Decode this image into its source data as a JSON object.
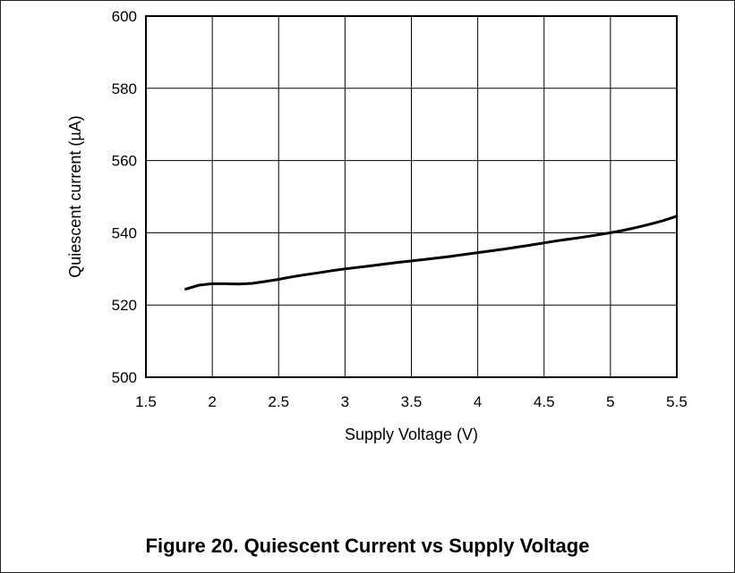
{
  "figure": {
    "caption": "Figure 20. Quiescent Current vs Supply Voltage"
  },
  "chart_data": {
    "type": "line",
    "title": "",
    "xlabel": "Supply Voltage (V)",
    "ylabel": "Quiescent current (µA)",
    "xlim": [
      1.5,
      5.5
    ],
    "ylim": [
      500,
      600
    ],
    "xticks": [
      "1.5",
      "2",
      "2.5",
      "3",
      "3.5",
      "4",
      "4.5",
      "5",
      "5.5"
    ],
    "yticks": [
      "500",
      "520",
      "540",
      "560",
      "580",
      "600"
    ],
    "grid": true,
    "series": [
      {
        "color": "#000000",
        "x": [
          1.8,
          1.9,
          2.0,
          2.1,
          2.2,
          2.3,
          2.4,
          2.5,
          2.6,
          2.7,
          2.8,
          2.9,
          3.0,
          3.2,
          3.4,
          3.6,
          3.8,
          4.0,
          4.2,
          4.4,
          4.6,
          4.8,
          5.0,
          5.1,
          5.2,
          5.3,
          5.4,
          5.5
        ],
        "y": [
          524.4,
          525.5,
          525.9,
          525.9,
          525.8,
          526.0,
          526.5,
          527.1,
          527.8,
          528.4,
          528.9,
          529.5,
          530.0,
          530.9,
          531.8,
          532.6,
          533.5,
          534.5,
          535.5,
          536.6,
          537.8,
          538.8,
          540.0,
          540.7,
          541.5,
          542.4,
          543.4,
          544.6
        ]
      }
    ]
  }
}
